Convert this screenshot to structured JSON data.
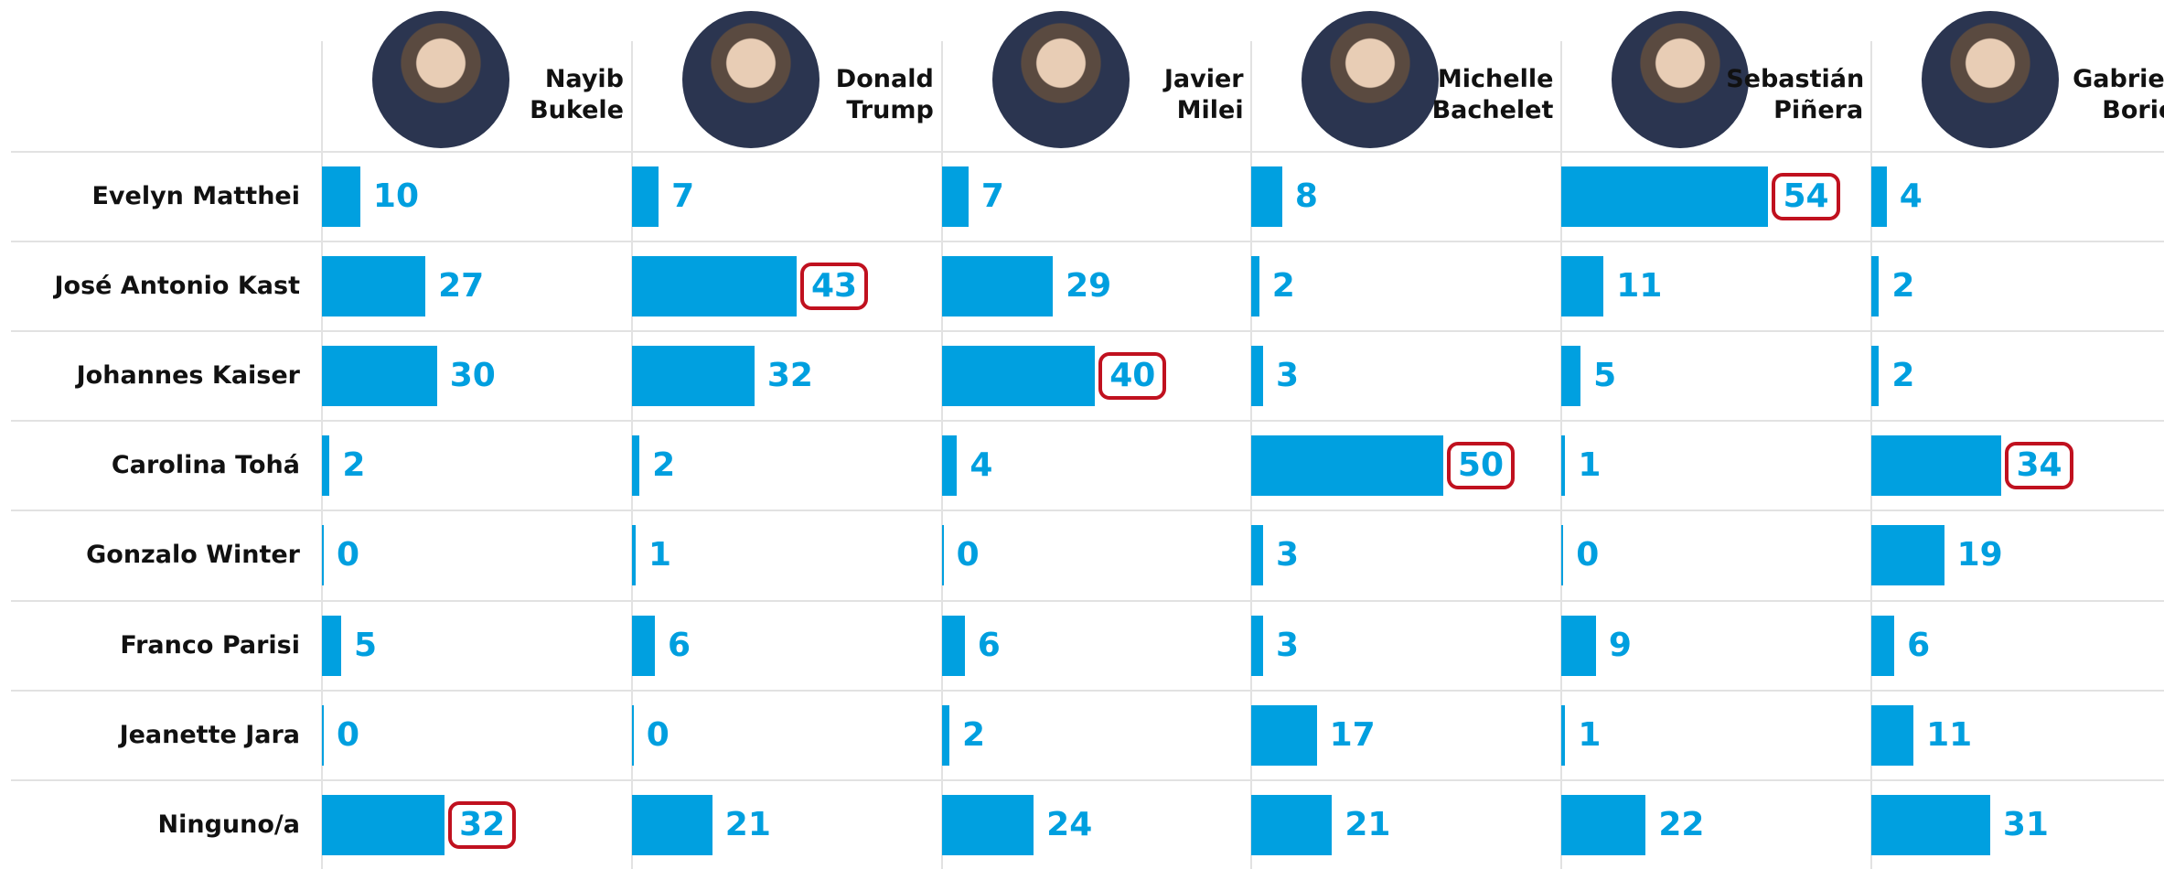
{
  "chart_data": {
    "type": "bar",
    "categories": [
      "Evelyn Matthei",
      "José Antonio Kast",
      "Johannes Kaiser",
      "Carolina Tohá",
      "Gonzalo Winter",
      "Franco Parisi",
      "Jeanette Jara",
      "Ninguno/a"
    ],
    "series": [
      {
        "name": "Nayib Bukele",
        "color": "#00a0e0",
        "values": [
          10,
          27,
          30,
          2,
          0,
          5,
          0,
          32
        ]
      },
      {
        "name": "Donald Trump",
        "color": "#00a0e0",
        "values": [
          7,
          43,
          32,
          2,
          1,
          6,
          0,
          21
        ]
      },
      {
        "name": "Javier Milei",
        "color": "#00a0e0",
        "values": [
          7,
          29,
          40,
          4,
          0,
          6,
          2,
          24
        ]
      },
      {
        "name": "Michelle Bachelet",
        "color": "#00a0e0",
        "values": [
          8,
          2,
          3,
          50,
          3,
          3,
          17,
          21
        ]
      },
      {
        "name": "Sebastián Piñera",
        "color": "#00a0e0",
        "values": [
          54,
          11,
          5,
          1,
          0,
          9,
          1,
          22
        ]
      },
      {
        "name": "Gabriel Boric",
        "color": "#00a0e0",
        "values": [
          4,
          2,
          2,
          34,
          19,
          6,
          11,
          31
        ]
      }
    ]
  }
}
